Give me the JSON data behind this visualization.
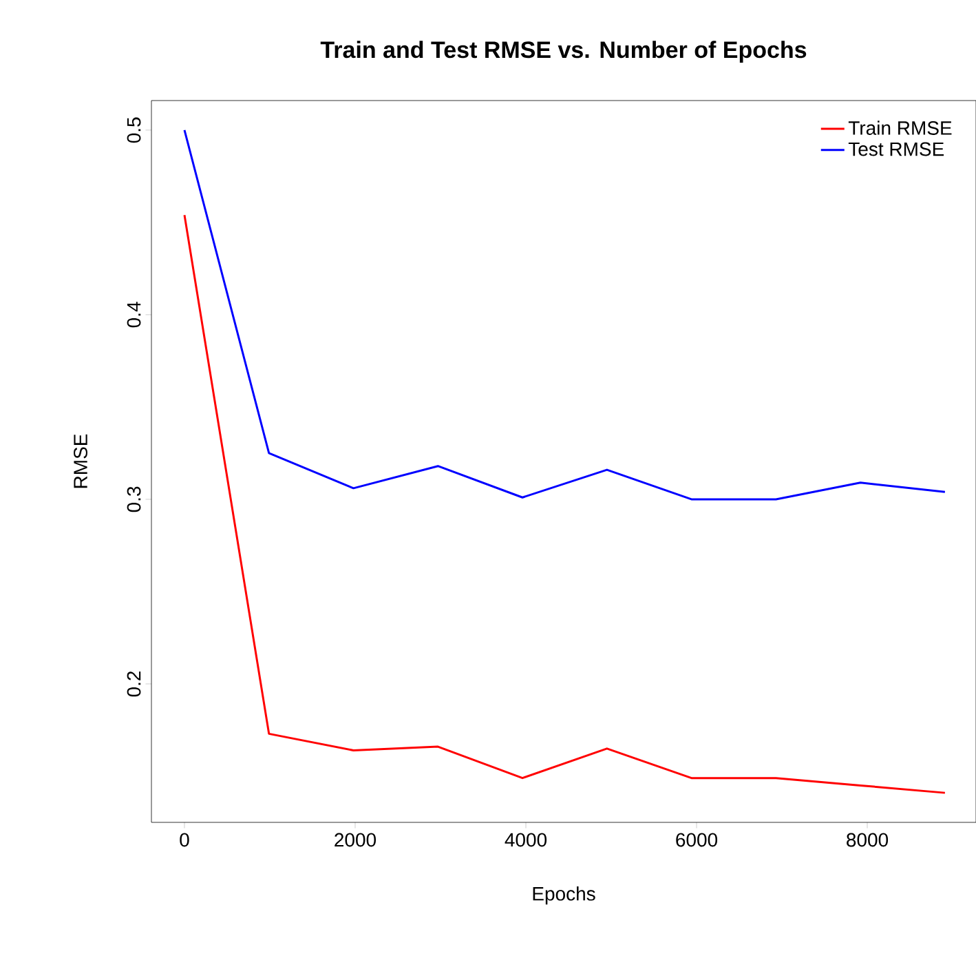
{
  "chart_data": {
    "type": "line",
    "title": "Train and Test RMSE vs. Number of Epochs",
    "xlabel": "Epochs",
    "ylabel": "RMSE",
    "x": [
      0,
      990,
      1980,
      2970,
      3960,
      4950,
      5940,
      6930,
      7920,
      8910
    ],
    "series": [
      {
        "name": "Train RMSE",
        "color": "#ff0000",
        "values": [
          0.454,
          0.173,
          0.164,
          0.166,
          0.149,
          0.165,
          0.149,
          0.149,
          0.145,
          0.141
        ]
      },
      {
        "name": "Test RMSE",
        "color": "#0000ff",
        "values": [
          0.5,
          0.325,
          0.306,
          0.318,
          0.301,
          0.316,
          0.3,
          0.3,
          0.309,
          0.304
        ]
      }
    ],
    "xlim": [
      -387,
      9274
    ],
    "ylim": [
      0.125,
      0.516
    ],
    "xticks": [
      0,
      2000,
      4000,
      6000,
      8000
    ],
    "yticks": [
      0.2,
      0.3,
      0.4,
      0.5
    ],
    "legend": "top right",
    "grid": false
  }
}
